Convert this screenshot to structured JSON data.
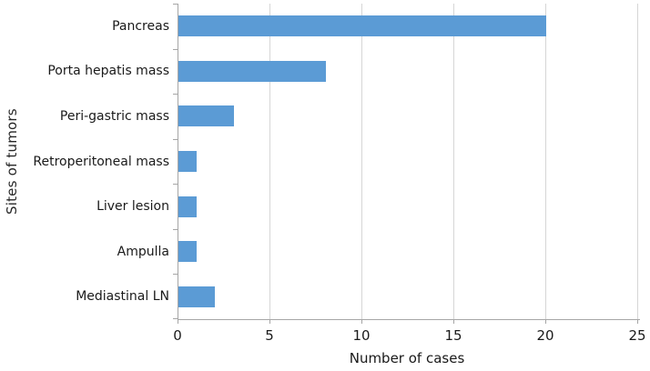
{
  "chart_data": {
    "type": "bar",
    "orientation": "horizontal",
    "categories": [
      "Pancreas",
      "Porta hepatis mass",
      "Peri-gastric mass",
      "Retroperitoneal mass",
      "Liver lesion",
      "Ampulla",
      "Mediastinal LN"
    ],
    "values": [
      20,
      8,
      3,
      1,
      1,
      1,
      2
    ],
    "title": "",
    "xlabel": "Number of cases",
    "ylabel": "Sites of tumors",
    "xlim": [
      0,
      25
    ],
    "xticks": [
      0,
      5,
      10,
      15,
      20,
      25
    ],
    "grid": "vertical-gridlines",
    "legend": "none",
    "bar_color": "#5B9BD5",
    "gridline_color": "#D6D6D6",
    "axis_color": "#A6A6A6",
    "text_color": "#1A1A1A"
  }
}
